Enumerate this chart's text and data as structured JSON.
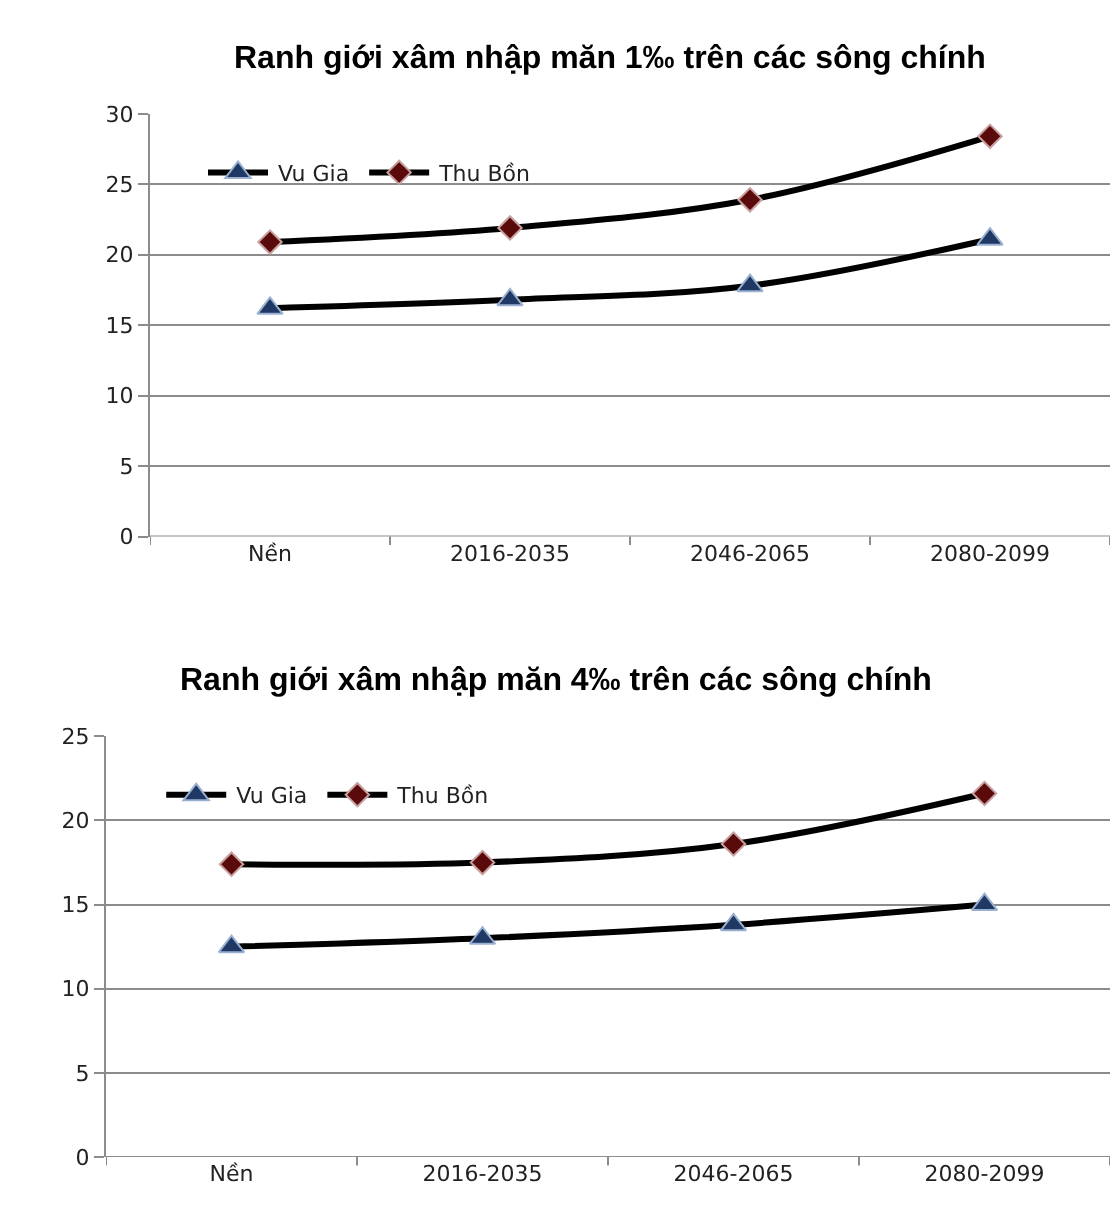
{
  "chart_data": [
    {
      "type": "line",
      "title": "Ranh giới xâm nhập măn 1‰ trên các sông chính",
      "categories": [
        "Nền",
        "2016-2035",
        "2046-2065",
        "2080-2099"
      ],
      "ylim": [
        0,
        30
      ],
      "yticks": [
        0,
        5,
        10,
        15,
        20,
        25,
        30
      ],
      "grid": "y",
      "legend": "top left",
      "line_style": "solid",
      "series": [
        {
          "name": "Vu Gia",
          "color": "#000000",
          "marker": "triangle",
          "values": [
            16.2,
            16.8,
            17.8,
            21.1
          ]
        },
        {
          "name": "Thu Bồn",
          "color": "#000000",
          "marker": "diamond",
          "values": [
            20.9,
            21.9,
            23.9,
            28.4
          ]
        }
      ]
    },
    {
      "type": "line",
      "title": "Ranh giới xâm nhập măn 4‰ trên các sông chính",
      "categories": [
        "Nền",
        "2016-2035",
        "2046-2065",
        "2080-2099"
      ],
      "ylim": [
        0,
        25
      ],
      "yticks": [
        0,
        5,
        10,
        15,
        20,
        25
      ],
      "grid": "y",
      "legend": "top left",
      "line_style": "solid",
      "series": [
        {
          "name": "Vu Gia",
          "color": "#000000",
          "marker": "triangle",
          "values": [
            12.5,
            13.0,
            13.8,
            15.0
          ]
        },
        {
          "name": "Thu Bồn",
          "color": "#000000",
          "marker": "diamond",
          "values": [
            17.4,
            17.5,
            18.6,
            21.6
          ]
        }
      ]
    }
  ]
}
